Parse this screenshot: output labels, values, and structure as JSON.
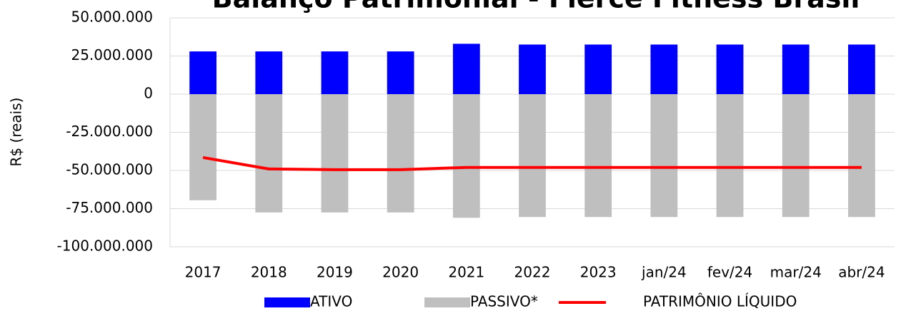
{
  "chart_data": {
    "type": "bar",
    "title": "Balanço Patrimonial - Fierce Fitness Brasil",
    "y_label": "R$ (reais)",
    "categories": [
      "2017",
      "2018",
      "2019",
      "2020",
      "2021",
      "2022",
      "2023",
      "jan/24",
      "fev/24",
      "mar/24",
      "abr/24"
    ],
    "series": [
      {
        "name": "ATIVO",
        "type": "bar",
        "color": "#0000ff",
        "values": [
          28000000,
          28000000,
          28000000,
          28000000,
          33000000,
          32500000,
          32500000,
          32500000,
          32500000,
          32500000,
          32500000
        ]
      },
      {
        "name": "PASSIVO*",
        "type": "bar",
        "color": "#bfbfbf",
        "values": [
          -69500000,
          -77500000,
          -77500000,
          -77500000,
          -81000000,
          -80500000,
          -80500000,
          -80500000,
          -80500000,
          -80500000,
          -80500000
        ]
      },
      {
        "name": "PATRIMÔNIO LÍQUIDO",
        "type": "line",
        "color": "#ff0000",
        "values": [
          -41500000,
          -49000000,
          -49500000,
          -49500000,
          -48000000,
          -48000000,
          -48000000,
          -48000000,
          -48000000,
          -48000000,
          -48000000
        ]
      }
    ],
    "ylim": [
      -100000000,
      50000000
    ],
    "yticks": [
      {
        "value": -100000000,
        "label": "-100.000.000"
      },
      {
        "value": -75000000,
        "label": "-75.000.000"
      },
      {
        "value": -50000000,
        "label": "-50.000.000"
      },
      {
        "value": -25000000,
        "label": "-25.000.000"
      },
      0,
      {
        "value": 25000000,
        "label": "25.000.000"
      },
      {
        "value": 50000000,
        "label": "50.000.000"
      }
    ],
    "negative_tick_color": "#e00000",
    "grid": true,
    "legend": "bottom"
  }
}
